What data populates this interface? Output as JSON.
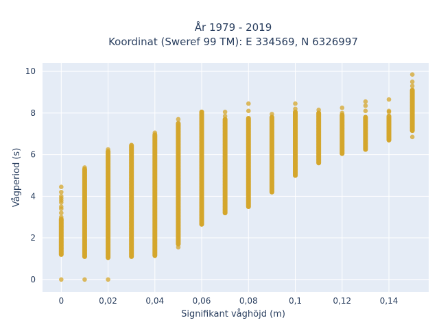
{
  "chart_data": {
    "type": "scatter",
    "title_line1": "År 1979 - 2019",
    "title_line2": "Koordinat (Sweref 99 TM): E 334569, N 6326997",
    "xlabel": "Signifikant våghöjd (m)",
    "ylabel": "Vågperiod (s)",
    "xlim": [
      -0.008,
      0.157
    ],
    "ylim": [
      -0.6,
      10.4
    ],
    "grid": true,
    "x_ticks": [
      0,
      0.02,
      0.04,
      0.06,
      0.08,
      0.1,
      0.12,
      0.14
    ],
    "x_tick_labels": [
      "0",
      "0,02",
      "0,04",
      "0,06",
      "0,08",
      "0,1",
      "0,12",
      "0,14"
    ],
    "y_ticks": [
      0,
      2,
      4,
      6,
      8,
      10
    ],
    "y_tick_labels": [
      "0",
      "2",
      "4",
      "6",
      "8",
      "10"
    ],
    "marker_color": "#d4a52a",
    "plot_bg": "#e5ecf6",
    "columns": [
      {
        "x": 0.0,
        "y_min": 1.2,
        "y_max": 2.9,
        "outliers": [
          0.0,
          3.0,
          3.2,
          3.4,
          3.5,
          3.7,
          3.8,
          3.9,
          4.0,
          4.2,
          4.45
        ]
      },
      {
        "x": 0.01,
        "y_min": 1.1,
        "y_max": 5.3,
        "outliers": [
          0.0,
          5.38
        ]
      },
      {
        "x": 0.02,
        "y_min": 1.05,
        "y_max": 6.15,
        "outliers": [
          0.0,
          6.25
        ]
      },
      {
        "x": 0.03,
        "y_min": 1.1,
        "y_max": 6.45,
        "outliers": []
      },
      {
        "x": 0.04,
        "y_min": 1.15,
        "y_max": 6.95,
        "outliers": [
          7.05
        ]
      },
      {
        "x": 0.05,
        "y_min": 1.7,
        "y_max": 7.5,
        "outliers": [
          1.55,
          7.7
        ]
      },
      {
        "x": 0.06,
        "y_min": 2.65,
        "y_max": 8.05,
        "outliers": []
      },
      {
        "x": 0.07,
        "y_min": 3.2,
        "y_max": 7.7,
        "outliers": [
          7.85,
          8.05
        ]
      },
      {
        "x": 0.08,
        "y_min": 3.5,
        "y_max": 7.75,
        "outliers": [
          8.1,
          8.45
        ]
      },
      {
        "x": 0.09,
        "y_min": 4.2,
        "y_max": 7.8,
        "outliers": [
          7.95
        ]
      },
      {
        "x": 0.1,
        "y_min": 5.0,
        "y_max": 8.05,
        "outliers": [
          8.2,
          8.45
        ]
      },
      {
        "x": 0.11,
        "y_min": 5.6,
        "y_max": 8.0,
        "outliers": [
          8.15
        ]
      },
      {
        "x": 0.12,
        "y_min": 6.05,
        "y_max": 7.9,
        "outliers": [
          8.0,
          8.25
        ]
      },
      {
        "x": 0.13,
        "y_min": 6.25,
        "y_max": 7.8,
        "outliers": [
          8.1,
          8.35,
          8.55
        ]
      },
      {
        "x": 0.14,
        "y_min": 6.7,
        "y_max": 7.85,
        "outliers": [
          8.05,
          8.1,
          8.65
        ]
      },
      {
        "x": 0.15,
        "y_min": 7.15,
        "y_max": 9.1,
        "outliers": [
          6.85,
          9.3,
          9.5,
          9.85
        ]
      }
    ]
  }
}
